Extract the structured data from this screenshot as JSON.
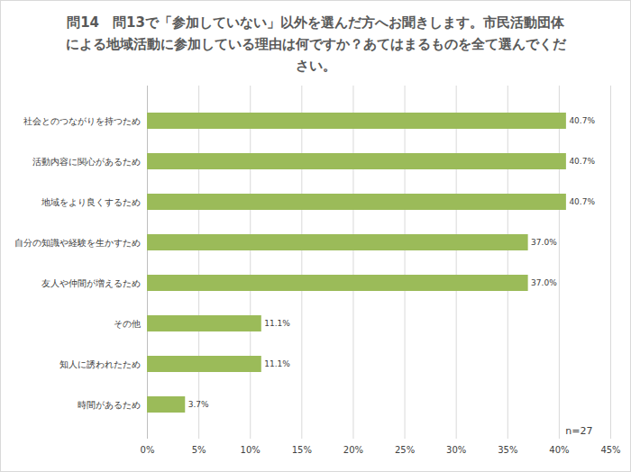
{
  "chart_data": {
    "type": "bar",
    "title": "問14　問13で「参加していない」以外を選んだ方へお聞きします。市民活動団体による地域活動に参加している理由は何ですか？あてはまるものを全て選んでください。",
    "categories": [
      "社会とのつながりを持つため",
      "活動内容に関心があるため",
      "地域をより良くするため",
      "自分の知識や経験を生かすため",
      "友人や仲間が増えるため",
      "その他",
      "知人に誘われたため",
      "時間があるため"
    ],
    "values": [
      40.7,
      40.7,
      40.7,
      37.0,
      37.0,
      11.1,
      11.1,
      3.7
    ],
    "value_labels": [
      "40.7%",
      "40.7%",
      "40.7%",
      "37.0%",
      "37.0%",
      "11.1%",
      "11.1%",
      "3.7%"
    ],
    "color": "#9bbb59",
    "orientation": "horizontal",
    "data_labels": true,
    "grid": true,
    "xlim": [
      0,
      45
    ],
    "xticks": [
      {
        "value": 0,
        "label": "0%"
      },
      {
        "value": 5,
        "label": "5%"
      },
      {
        "value": 10,
        "label": "10%"
      },
      {
        "value": 15,
        "label": "15%"
      },
      {
        "value": 20,
        "label": "20%"
      },
      {
        "value": 25,
        "label": "25%"
      },
      {
        "value": 30,
        "label": "30%"
      },
      {
        "value": 35,
        "label": "35%"
      },
      {
        "value": 40,
        "label": "40%"
      },
      {
        "value": 45,
        "label": "45%"
      }
    ],
    "annotations": [
      "n=27"
    ]
  }
}
